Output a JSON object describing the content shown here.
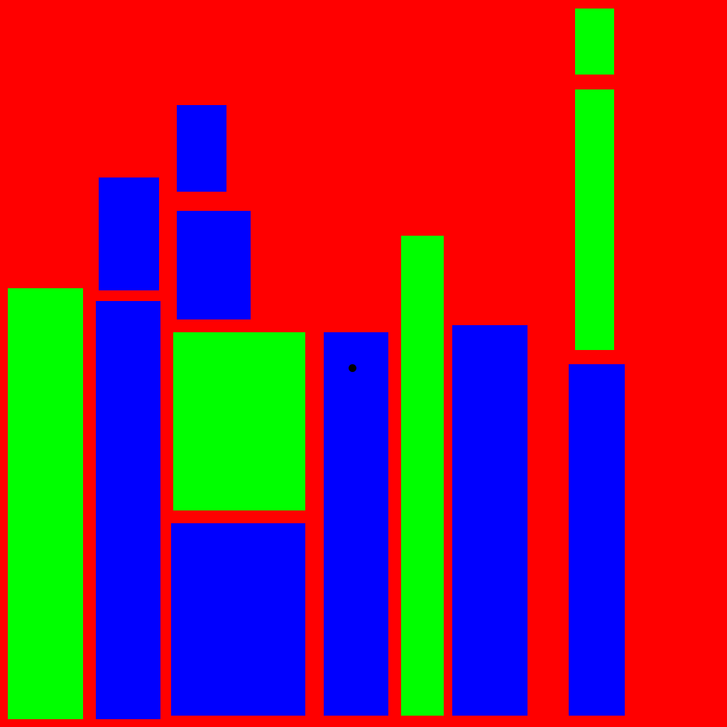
{
  "colors": {
    "background": "#ff0000",
    "green": "#00ff00",
    "blue": "#0000ff",
    "dot": "#000000"
  },
  "blocks": [
    {
      "id": "b1",
      "color": "green"
    },
    {
      "id": "b2",
      "color": "blue"
    },
    {
      "id": "b3",
      "color": "blue"
    },
    {
      "id": "b4",
      "color": "blue"
    },
    {
      "id": "b5",
      "color": "blue"
    },
    {
      "id": "b6",
      "color": "green"
    },
    {
      "id": "b7",
      "color": "blue"
    },
    {
      "id": "b8",
      "color": "blue"
    },
    {
      "id": "b9",
      "color": "green"
    },
    {
      "id": "b10",
      "color": "blue"
    },
    {
      "id": "b11",
      "color": "green"
    },
    {
      "id": "b12",
      "color": "green"
    },
    {
      "id": "b13",
      "color": "blue"
    }
  ],
  "markers": [
    {
      "id": "d1",
      "type": "dot"
    }
  ]
}
